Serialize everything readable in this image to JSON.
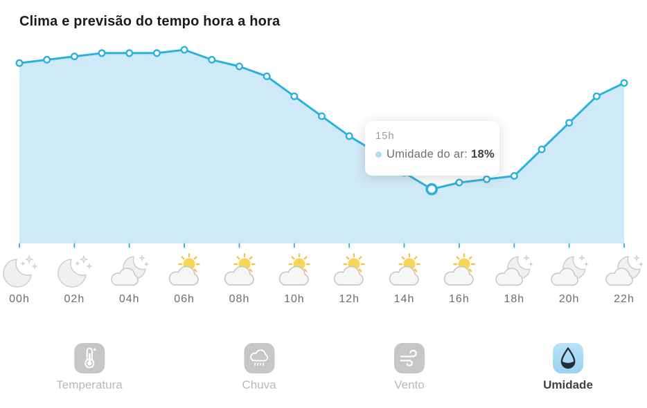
{
  "title": "Clima e previsão do tempo hora a hora",
  "chart_data": {
    "type": "area",
    "series_name": "Umidade do ar",
    "unit": "%",
    "x": [
      "00h",
      "01h",
      "02h",
      "03h",
      "04h",
      "05h",
      "06h",
      "07h",
      "08h",
      "09h",
      "10h",
      "11h",
      "12h",
      "13h",
      "14h",
      "15h",
      "16h",
      "17h",
      "18h",
      "19h",
      "20h",
      "21h",
      "22h"
    ],
    "values": [
      56,
      57,
      58,
      59,
      59,
      59,
      60,
      57,
      55,
      52,
      46,
      40,
      34,
      29,
      23,
      18,
      20,
      21,
      22,
      30,
      38,
      46,
      50
    ],
    "highlighted_index": 15,
    "highlighted_value_label": "18%",
    "xlabel": "",
    "ylabel": "",
    "grid": false,
    "legend_position": "none",
    "line_color": "#29b1e0",
    "fill_color": "#cfeaf6",
    "marker_fill": "#ffffff",
    "tick_color": "#29b1e0"
  },
  "tooltip": {
    "hour": "15h",
    "label": "Umidade do ar:",
    "value": "18%",
    "dot_color": "#a9def3"
  },
  "hour_icons": [
    {
      "hour": "00h",
      "icon": "moon-stars"
    },
    {
      "hour": "02h",
      "icon": "moon-stars"
    },
    {
      "hour": "04h",
      "icon": "moon-cloud"
    },
    {
      "hour": "06h",
      "icon": "sun-cloud"
    },
    {
      "hour": "08h",
      "icon": "sun-cloud"
    },
    {
      "hour": "10h",
      "icon": "sun-cloud"
    },
    {
      "hour": "12h",
      "icon": "sun-cloud"
    },
    {
      "hour": "14h",
      "icon": "sun-cloud"
    },
    {
      "hour": "16h",
      "icon": "sun-cloud"
    },
    {
      "hour": "18h",
      "icon": "moon-cloud"
    },
    {
      "hour": "20h",
      "icon": "moon-cloud"
    },
    {
      "hour": "22h",
      "icon": "moon-cloud"
    }
  ],
  "tabs": [
    {
      "label": "Temperatura",
      "icon": "thermometer-icon",
      "active": false
    },
    {
      "label": "Chuva",
      "icon": "rain-cloud-icon",
      "active": false
    },
    {
      "label": "Vento",
      "icon": "wind-icon",
      "active": false
    },
    {
      "label": "Umidade",
      "icon": "water-drop-icon",
      "active": true
    }
  ],
  "colors": {
    "active_tab_bg_top": "#b9e2f8",
    "active_tab_bg_bottom": "#9cd1f2",
    "inactive_tab_bg": "#c5c6c8",
    "active_tab_label": "#3d4248",
    "inactive_tab_label": "#b8b9bb",
    "hour_label": "#6c6c6c",
    "title_text": "#1b1b1b"
  }
}
